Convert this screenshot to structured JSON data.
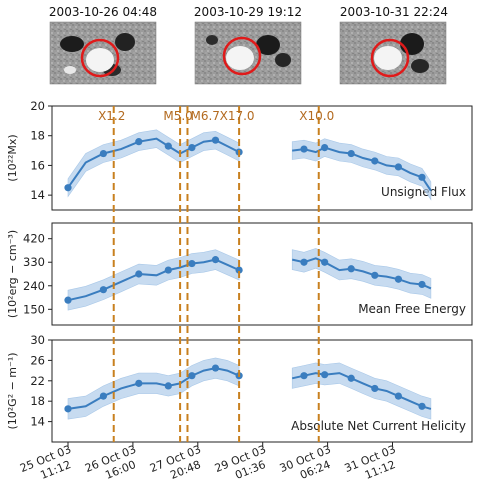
{
  "colors": {
    "line": "#3a7dbf",
    "band": "#a9c8e8",
    "flare": "#c8801f",
    "circle": "#e01a1a"
  },
  "magnetograms": [
    {
      "time": "2003-10-26 04:48"
    },
    {
      "time": "2003-10-29 19:12"
    },
    {
      "time": "2003-10-31 22:24"
    }
  ],
  "flares": [
    {
      "label": "X1.2",
      "x": 1.55
    },
    {
      "label": "M5.0",
      "x": 3.8
    },
    {
      "label": "M6.7",
      "x": 4.05
    },
    {
      "label": "X17.0",
      "x": 5.8
    },
    {
      "label": "X10.0",
      "x": 8.5
    }
  ],
  "xticks": [
    {
      "x": 0,
      "l1": "25 Oct 03",
      "l2": "11:12"
    },
    {
      "x": 2.2,
      "l1": "26 Oct 03",
      "l2": "16:00"
    },
    {
      "x": 4.4,
      "l1": "27 Oct 03",
      "l2": "20:48"
    },
    {
      "x": 6.6,
      "l1": "29 Oct 03",
      "l2": "01:36"
    },
    {
      "x": 8.8,
      "l1": "30 Oct 03",
      "l2": "06:24"
    },
    {
      "x": 11.0,
      "l1": "31 Oct 03",
      "l2": "11:12"
    }
  ],
  "chart_data": [
    {
      "type": "line",
      "title": "Unsigned Flux",
      "ylabel": "(10²²Mx)",
      "ylim": [
        13,
        20
      ],
      "yticks": [
        14,
        16,
        18,
        20
      ],
      "x": [
        0.0,
        0.6,
        1.2,
        1.8,
        2.4,
        3.0,
        3.4,
        3.8,
        4.2,
        4.6,
        5.0,
        5.4,
        5.8,
        7.6,
        8.0,
        8.4,
        8.7,
        9.2,
        9.6,
        10.0,
        10.4,
        10.8,
        11.2,
        11.6,
        12.0,
        12.3
      ],
      "y": [
        14.5,
        16.2,
        16.8,
        17.1,
        17.6,
        17.8,
        17.3,
        16.8,
        17.2,
        17.6,
        17.7,
        17.3,
        16.9,
        17.0,
        17.1,
        16.9,
        17.2,
        16.9,
        16.8,
        16.5,
        16.3,
        16.0,
        15.9,
        15.5,
        15.2,
        14.3
      ],
      "band": 0.6
    },
    {
      "type": "line",
      "title": "Mean Free Energy",
      "ylabel": "(10²erg − cm⁻³)",
      "ylim": [
        90,
        480
      ],
      "yticks": [
        150,
        240,
        330,
        420
      ],
      "x": [
        0.0,
        0.6,
        1.2,
        1.8,
        2.4,
        3.0,
        3.4,
        3.8,
        4.2,
        4.6,
        5.0,
        5.4,
        5.8,
        7.6,
        8.0,
        8.4,
        8.7,
        9.2,
        9.6,
        10.0,
        10.4,
        10.8,
        11.2,
        11.6,
        12.0,
        12.3
      ],
      "y": [
        185,
        200,
        225,
        255,
        285,
        280,
        300,
        310,
        325,
        330,
        340,
        320,
        300,
        340,
        330,
        345,
        330,
        300,
        305,
        295,
        280,
        275,
        265,
        250,
        245,
        230
      ],
      "band": 38
    },
    {
      "type": "line",
      "title": "Absolute Net Current Helicity",
      "ylabel": "(10²G² − m⁻¹)",
      "ylim": [
        10,
        30
      ],
      "yticks": [
        14,
        18,
        22,
        26,
        30
      ],
      "x": [
        0.0,
        0.6,
        1.2,
        1.8,
        2.4,
        3.0,
        3.4,
        3.8,
        4.2,
        4.6,
        5.0,
        5.4,
        5.8,
        7.6,
        8.0,
        8.4,
        8.7,
        9.2,
        9.6,
        10.0,
        10.4,
        10.8,
        11.2,
        11.6,
        12.0,
        12.3
      ],
      "y": [
        16.5,
        17.0,
        19.0,
        20.5,
        21.5,
        21.5,
        21.0,
        21.5,
        23.0,
        24.0,
        24.5,
        24.0,
        23.0,
        22.5,
        23.0,
        23.5,
        23.2,
        23.5,
        22.5,
        21.5,
        20.5,
        20.0,
        19.0,
        18.0,
        17.0,
        16.5
      ],
      "band": 2.0
    }
  ]
}
